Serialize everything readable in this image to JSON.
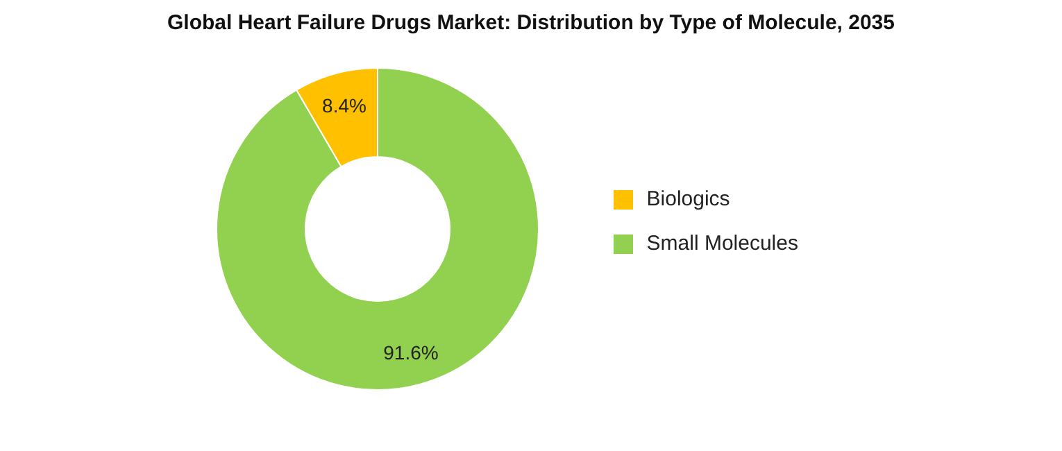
{
  "chart_data": {
    "type": "donut",
    "title": "Global Heart Failure Drugs Market: Distribution by Type of Molecule, 2035",
    "categories": [
      "Small Molecules",
      "Biologics"
    ],
    "values": [
      91.6,
      8.4
    ],
    "colors": [
      "#92d050",
      "#ffc000"
    ],
    "value_labels": [
      "91.6%",
      "8.4%"
    ],
    "legend": "right"
  }
}
